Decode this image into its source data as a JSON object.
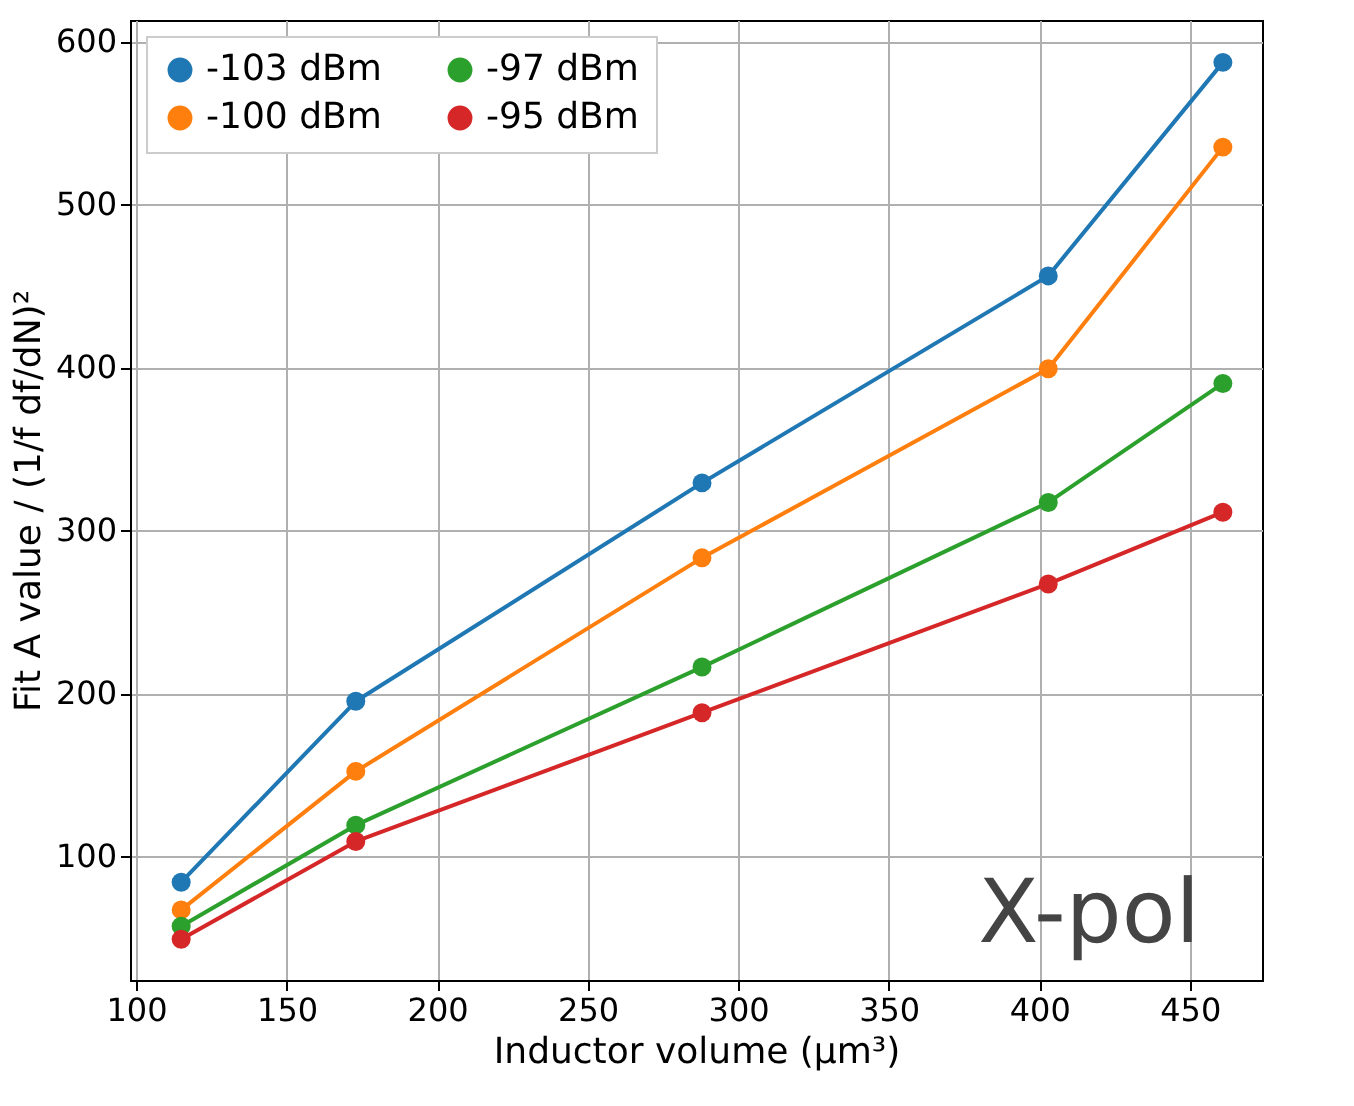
{
  "chart_data": {
    "type": "line",
    "xlabel": "Inductor volume (μm³)",
    "ylabel": "Fit A value / (1/f df/dN)²",
    "x": [
      115,
      173,
      288,
      403,
      461
    ],
    "series": [
      {
        "name": "-103 dBm",
        "color": "#1f77b4",
        "values": [
          84,
          195,
          329,
          456,
          587
        ]
      },
      {
        "name": "-100 dBm",
        "color": "#ff7f0e",
        "values": [
          67,
          152,
          283,
          399,
          535
        ]
      },
      {
        "name": "-97 dBm",
        "color": "#2ca02c",
        "values": [
          57,
          119,
          216,
          317,
          390
        ]
      },
      {
        "name": "-95 dBm",
        "color": "#d62728",
        "values": [
          49,
          109,
          188,
          267,
          311
        ]
      }
    ],
    "xlim": [
      98,
      474
    ],
    "xticks": [
      100,
      150,
      200,
      250,
      300,
      350,
      400,
      450
    ],
    "ylim": [
      24,
      613
    ],
    "yticks": [
      100,
      200,
      300,
      400,
      500,
      600
    ],
    "grid": true,
    "legend": "top left",
    "marker": "circle",
    "line_style": "solid",
    "annotations": [
      "X-pol"
    ]
  }
}
